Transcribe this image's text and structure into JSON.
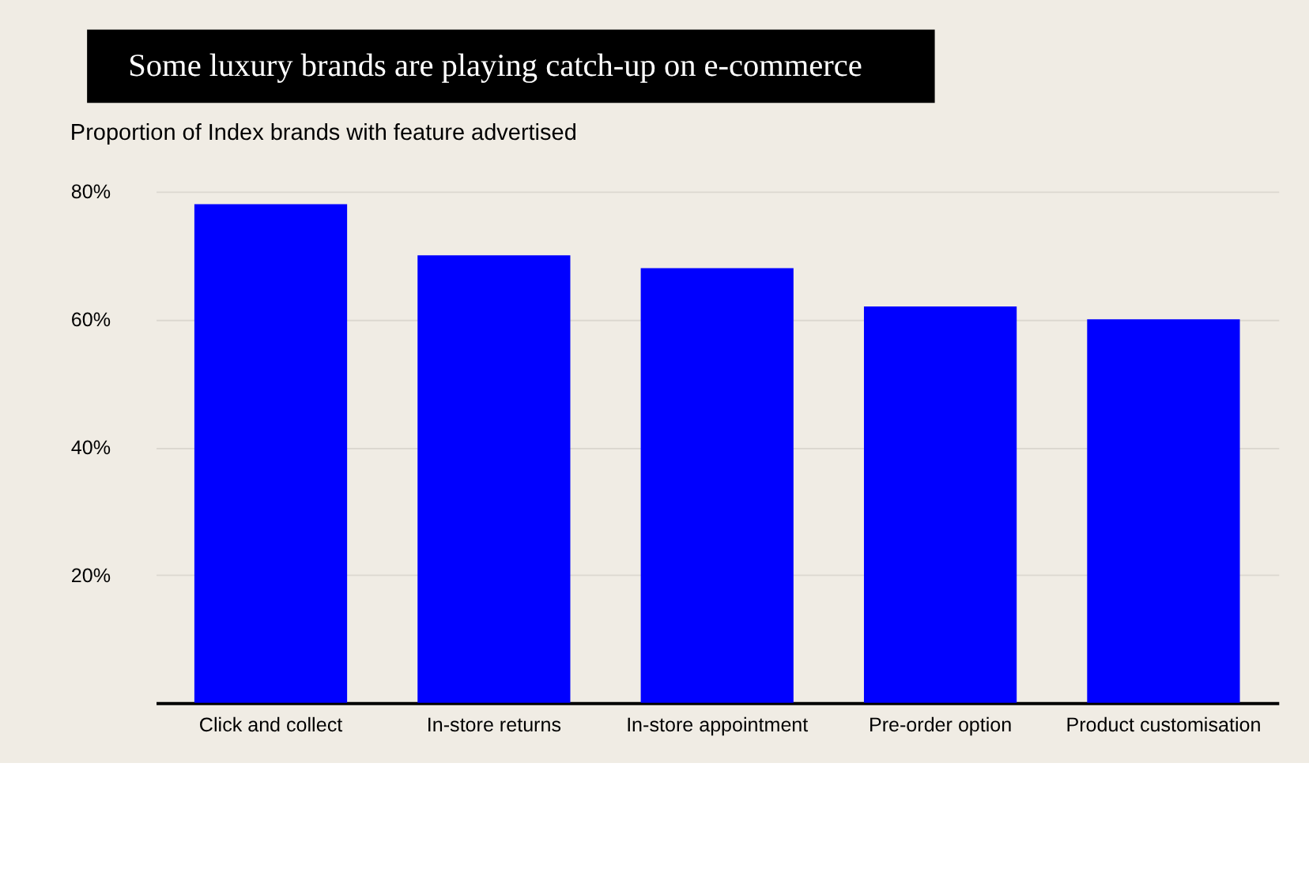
{
  "chart_data": {
    "type": "bar",
    "title": "Some luxury brands are playing catch-up on e-commerce",
    "subtitle": "Proportion of Index brands with feature advertised",
    "categories": [
      "Click and collect",
      "In-store returns",
      "In-store appointment",
      "Pre-order option",
      "Product customisation"
    ],
    "values": [
      78,
      70,
      68,
      62,
      60
    ],
    "color": "#0000ff",
    "ylim": [
      0,
      80
    ],
    "yticks": [
      {
        "value": 20,
        "label": "20%"
      },
      {
        "value": 40,
        "label": "40%"
      },
      {
        "value": 60,
        "label": "60%"
      },
      {
        "value": 80,
        "label": "80%"
      }
    ],
    "grid": "y"
  }
}
